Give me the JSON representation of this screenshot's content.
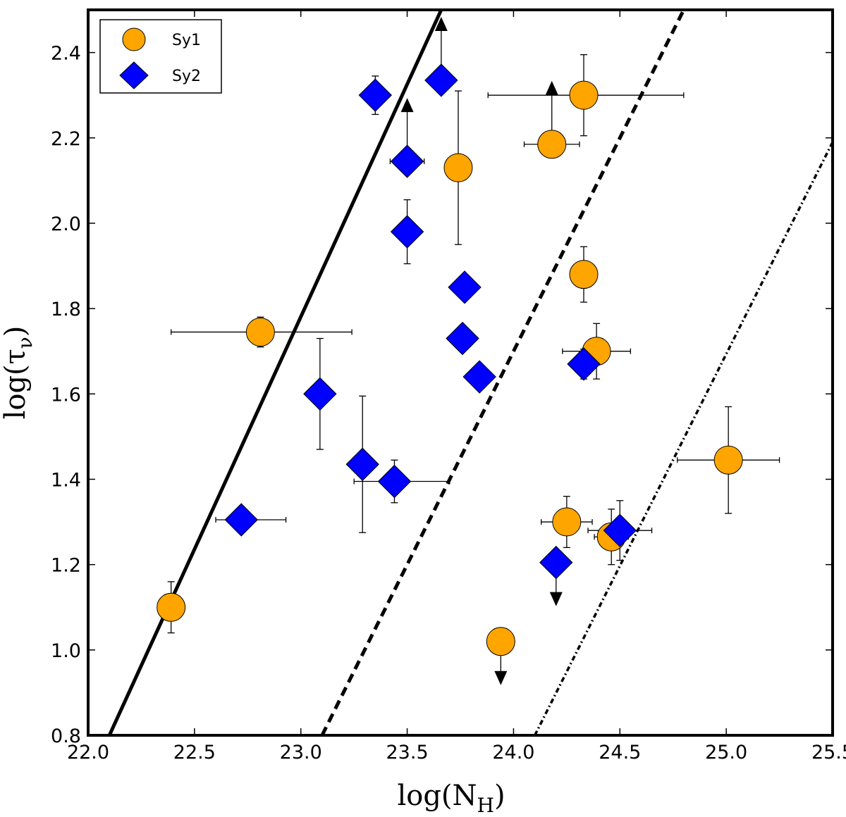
{
  "chart_data": {
    "type": "scatter",
    "xlabel": "log(N",
    "xlabel_sub": "H",
    "xlabel_end": ")",
    "ylabel": "log(τ",
    "ylabel_sub": "ν",
    "ylabel_end": ")",
    "xlim": [
      22.0,
      25.5
    ],
    "ylim": [
      0.8,
      2.5
    ],
    "xticks": [
      22.0,
      22.5,
      23.0,
      23.5,
      24.0,
      24.5,
      25.0,
      25.5
    ],
    "xtick_labels": [
      "22.0",
      "22.5",
      "23.0",
      "23.5",
      "24.0",
      "24.5",
      "25.0",
      "25.5"
    ],
    "yticks": [
      0.8,
      1.0,
      1.2,
      1.4,
      1.6,
      1.8,
      2.0,
      2.2,
      2.4
    ],
    "ytick_labels": [
      "0.8",
      "1.0",
      "1.2",
      "1.4",
      "1.6",
      "1.8",
      "2.0",
      "2.2",
      "2.4"
    ],
    "legend": {
      "position": "top-left",
      "entries": [
        {
          "label": "Sy1",
          "marker": "circle",
          "color": "#FFA500"
        },
        {
          "label": "Sy2",
          "marker": "diamond",
          "color": "#0000FF"
        }
      ]
    },
    "lines": [
      {
        "name": "solid",
        "style": "solid",
        "x": [
          22.1,
          23.66
        ],
        "y": [
          0.8,
          2.5
        ]
      },
      {
        "name": "dashed",
        "style": "dashed",
        "x": [
          23.1,
          24.8
        ],
        "y": [
          0.8,
          2.5
        ]
      },
      {
        "name": "dash-dot",
        "style": "dashdot",
        "x": [
          24.1,
          25.5
        ],
        "y": [
          0.8,
          2.19
        ]
      }
    ],
    "series": [
      {
        "name": "Sy1",
        "marker": "circle",
        "color": "#FFA500",
        "points": [
          {
            "x": 22.39,
            "y": 1.1,
            "yerr": 0.06
          },
          {
            "x": 22.81,
            "y": 1.745,
            "xerr": [
              0.42,
              0.43
            ],
            "yerr": 0.035
          },
          {
            "x": 23.74,
            "y": 2.13,
            "yerr": [
              0.18,
              0.18
            ]
          },
          {
            "x": 24.18,
            "y": 2.185,
            "xerr": 0.13,
            "limit": "lower"
          },
          {
            "x": 24.33,
            "y": 2.3,
            "xerr": [
              0.45,
              0.47
            ],
            "yerr": 0.095
          },
          {
            "x": 24.33,
            "y": 1.88,
            "xerr": 0.06,
            "yerr": 0.065
          },
          {
            "x": 24.39,
            "y": 1.7,
            "xerr": 0.16,
            "yerr": 0.065
          },
          {
            "x": 24.25,
            "y": 1.3,
            "xerr": 0.12,
            "yerr": 0.06
          },
          {
            "x": 24.46,
            "y": 1.265,
            "xerr": 0.08,
            "yerr": 0.065
          },
          {
            "x": 23.94,
            "y": 1.02,
            "xerr": 0.06,
            "limit": "upper"
          },
          {
            "x": 25.01,
            "y": 1.445,
            "xerr": 0.24,
            "yerr": 0.125
          }
        ]
      },
      {
        "name": "Sy2",
        "marker": "diamond",
        "color": "#0000FF",
        "points": [
          {
            "x": 22.72,
            "y": 1.305,
            "xerr": [
              0.12,
              0.21
            ]
          },
          {
            "x": 23.09,
            "y": 1.6,
            "xerr": 0.04,
            "yerr": [
              0.13,
              0.13
            ]
          },
          {
            "x": 23.29,
            "y": 1.435,
            "yerr": [
              0.16,
              0.16
            ]
          },
          {
            "x": 23.44,
            "y": 1.395,
            "xerr": [
              0.19,
              0.26
            ],
            "yerr": 0.05
          },
          {
            "x": 23.35,
            "y": 2.3,
            "yerr": 0.045
          },
          {
            "x": 23.5,
            "y": 2.145,
            "xerr": 0.08,
            "limit": "lower"
          },
          {
            "x": 23.5,
            "y": 1.98,
            "yerr": 0.075
          },
          {
            "x": 23.66,
            "y": 2.335,
            "limit": "lower"
          },
          {
            "x": 23.77,
            "y": 1.85
          },
          {
            "x": 23.76,
            "y": 1.73
          },
          {
            "x": 23.84,
            "y": 1.64
          },
          {
            "x": 24.33,
            "y": 1.67,
            "yerr": 0.035
          },
          {
            "x": 24.2,
            "y": 1.205,
            "limit": "upper"
          },
          {
            "x": 24.5,
            "y": 1.28,
            "xerr": 0.15,
            "yerr": 0.07
          }
        ]
      }
    ]
  }
}
